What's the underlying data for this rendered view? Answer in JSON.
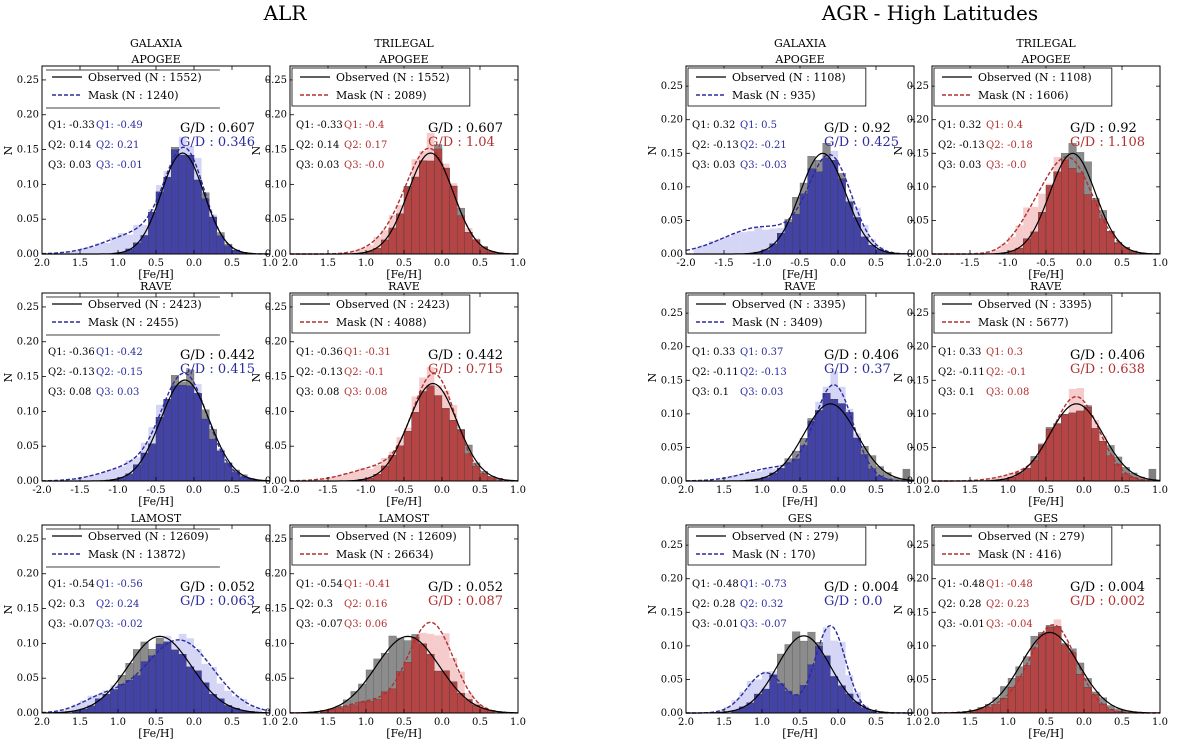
{
  "figure": {
    "section_titles": [
      "ALR",
      "AGR - High Latitudes"
    ],
    "colors": {
      "observed_hist": "#808080",
      "observed_line": "#000000",
      "galaxia": "#2b2b9e",
      "galaxia_light": "#b9b9ee",
      "trilegal": "#b03030",
      "trilegal_light": "#f0a8a8"
    }
  },
  "chart_data": [
    {
      "type": "bar",
      "section": "ALR",
      "title": "GALAXIA",
      "survey": "APOGEE",
      "model": "galaxia",
      "xlabel": "[Fe/H]",
      "ylabel": "N",
      "xlim": [
        2.0,
        1.0
      ],
      "xticks": [
        "2.0",
        "1.5",
        "1.0",
        "0.5",
        "0.0",
        "0.5",
        "1.0"
      ],
      "ylim": [
        0,
        0.27
      ],
      "yticks": [
        "0.00",
        "0.05",
        "0.10",
        "0.15",
        "0.20",
        "0.25"
      ],
      "legend": [
        "Observed (N : 1552)",
        "Mask (N : 1240)"
      ],
      "legend_box": false,
      "q_obs": [
        "Q1: -0.33",
        "Q2: 0.14",
        "Q3: 0.03"
      ],
      "q_mask": [
        "Q1: -0.49",
        "Q2: 0.21",
        "Q3: -0.01"
      ],
      "gd": [
        "G/D : 0.607",
        "G/D : 0.346"
      ],
      "obs": {
        "mu": -0.15,
        "sigma": 0.28,
        "peak": 0.145
      },
      "mask": {
        "mu": -0.12,
        "sigma": 0.26,
        "peak": 0.14
      },
      "tail": {
        "mu": -0.7,
        "sigma": 0.45,
        "peak": 0.03
      },
      "outlier": null
    },
    {
      "type": "bar",
      "section": "ALR",
      "title": "TRILEGAL",
      "survey": "APOGEE",
      "model": "trilegal",
      "xlabel": "[Fe/H]",
      "ylabel": "N",
      "xlim": [
        2.0,
        1.0
      ],
      "xticks": [
        "2.0",
        "1.5",
        "1.0",
        "0.5",
        "0.0",
        "0.5",
        "1.0"
      ],
      "ylim": [
        0,
        0.27
      ],
      "yticks": [
        "0.00",
        "0.05",
        "0.10",
        "0.15",
        "0.20",
        "0.25"
      ],
      "legend": [
        "Observed (N : 1552)",
        "Mask (N : 2089)"
      ],
      "legend_box": true,
      "q_obs": [
        "Q1: -0.33",
        "Q2: 0.14",
        "Q3: 0.03"
      ],
      "q_mask": [
        "Q1: -0.4",
        "Q2: 0.17",
        "Q3: -0.0"
      ],
      "gd": [
        "G/D : 0.607",
        "G/D : 1.04"
      ],
      "obs": {
        "mu": -0.15,
        "sigma": 0.3,
        "peak": 0.145
      },
      "mask": {
        "mu": -0.15,
        "sigma": 0.3,
        "peak": 0.145
      },
      "tail": {
        "mu": -0.6,
        "sigma": 0.3,
        "peak": 0.02
      },
      "outlier": null
    },
    {
      "type": "bar",
      "section": "ALR",
      "title": "",
      "survey": "RAVE",
      "model": "galaxia",
      "xlabel": "[Fe/H]",
      "ylabel": "N",
      "xlim": [
        -2.0,
        1.0
      ],
      "xticks": [
        "-2.0",
        "-1.5",
        "-1.0",
        "-0.5",
        "0.0",
        "0.5",
        "1.0"
      ],
      "ylim": [
        0,
        0.27
      ],
      "yticks": [
        "0.00",
        "0.05",
        "0.10",
        "0.15",
        "0.20",
        "0.25"
      ],
      "legend": [
        "Observed (N : 2423)",
        "Mask (N : 2455)"
      ],
      "legend_box": false,
      "q_obs": [
        "Q1: -0.36",
        "Q2: -0.13",
        "Q3: 0.08"
      ],
      "q_mask": [
        "Q1: -0.42",
        "Q2: -0.15",
        "Q3: 0.03"
      ],
      "gd": [
        "G/D : 0.442",
        "G/D : 0.415"
      ],
      "obs": {
        "mu": -0.12,
        "sigma": 0.32,
        "peak": 0.145
      },
      "mask": {
        "mu": -0.12,
        "sigma": 0.3,
        "peak": 0.15
      },
      "tail": {
        "mu": -0.8,
        "sigma": 0.4,
        "peak": 0.02
      },
      "outlier": null
    },
    {
      "type": "bar",
      "section": "ALR",
      "title": "",
      "survey": "RAVE",
      "model": "trilegal",
      "xlabel": "[Fe/H]",
      "ylabel": "N",
      "xlim": [
        -2.0,
        1.0
      ],
      "xticks": [
        "-2.0",
        "-1.5",
        "-1.0",
        "-0.5",
        "0.0",
        "0.5",
        "1.0"
      ],
      "ylim": [
        0,
        0.27
      ],
      "yticks": [
        "0.00",
        "0.05",
        "0.10",
        "0.15",
        "0.20",
        "0.25"
      ],
      "legend": [
        "Observed (N : 2423)",
        "Mask (N : 4088)"
      ],
      "legend_box": true,
      "q_obs": [
        "Q1: -0.36",
        "Q2: -0.13",
        "Q3: 0.08"
      ],
      "q_mask": [
        "Q1: -0.31",
        "Q2: -0.1",
        "Q3: 0.08"
      ],
      "gd": [
        "G/D : 0.442",
        "G/D : 0.715"
      ],
      "obs": {
        "mu": -0.12,
        "sigma": 0.32,
        "peak": 0.14
      },
      "mask": {
        "mu": -0.1,
        "sigma": 0.28,
        "peak": 0.15
      },
      "tail": {
        "mu": -0.8,
        "sigma": 0.4,
        "peak": 0.02
      },
      "outlier": null
    },
    {
      "type": "bar",
      "section": "ALR",
      "title": "",
      "survey": "LAMOST",
      "model": "galaxia",
      "xlabel": "[Fe/H]",
      "ylabel": "N",
      "xlim": [
        2.0,
        1.0
      ],
      "xticks": [
        "2.0",
        "1.5",
        "1.0",
        "0.5",
        "0.0",
        "0.5",
        "1.0"
      ],
      "ylim": [
        0,
        0.27
      ],
      "yticks": [
        "0.00",
        "0.05",
        "0.10",
        "0.15",
        "0.20",
        "0.25"
      ],
      "legend": [
        "Observed (N : 12609)",
        "Mask (N : 13872)"
      ],
      "legend_box": false,
      "q_obs": [
        "Q1: -0.54",
        "Q2: 0.3",
        "Q3: -0.07"
      ],
      "q_mask": [
        "Q1: -0.56",
        "Q2: 0.24",
        "Q3: -0.02"
      ],
      "gd": [
        "G/D : 0.052",
        "G/D : 0.063"
      ],
      "obs": {
        "mu": -0.45,
        "sigma": 0.42,
        "peak": 0.11
      },
      "mask": {
        "mu": -0.2,
        "sigma": 0.45,
        "peak": 0.105
      },
      "tail": {
        "mu": -1.2,
        "sigma": 0.3,
        "peak": 0.02
      },
      "outlier": null
    },
    {
      "type": "bar",
      "section": "ALR",
      "title": "",
      "survey": "LAMOST",
      "model": "trilegal",
      "xlabel": "[Fe/H]",
      "ylabel": "N",
      "xlim": [
        2.0,
        1.0
      ],
      "xticks": [
        "2.0",
        "1.5",
        "1.0",
        "0.5",
        "0.0",
        "0.5",
        "1.0"
      ],
      "ylim": [
        0,
        0.27
      ],
      "yticks": [
        "0.00",
        "0.05",
        "0.10",
        "0.15",
        "0.20",
        "0.25"
      ],
      "legend": [
        "Observed (N : 12609)",
        "Mask (N : 26634)"
      ],
      "legend_box": true,
      "q_obs": [
        "Q1: -0.54",
        "Q2: 0.3",
        "Q3: -0.07"
      ],
      "q_mask": [
        "Q1: -0.41",
        "Q2: 0.16",
        "Q3: 0.06"
      ],
      "gd": [
        "G/D : 0.052",
        "G/D : 0.087"
      ],
      "obs": {
        "mu": -0.45,
        "sigma": 0.42,
        "peak": 0.11
      },
      "mask": {
        "mu": -0.15,
        "sigma": 0.3,
        "peak": 0.13
      },
      "tail": {
        "mu": -1.0,
        "sigma": 0.3,
        "peak": 0.015
      },
      "outlier": null
    },
    {
      "type": "bar",
      "section": "AGR - High Latitudes",
      "title": "GALAXIA",
      "survey": "APOGEE",
      "model": "galaxia",
      "xlabel": "[Fe/H]",
      "ylabel": "N",
      "xlim": [
        -2.0,
        1.0
      ],
      "xticks": [
        "-2.0",
        "-1.5",
        "-1.0",
        "-0.5",
        "0.0",
        "0.5",
        "1.0"
      ],
      "ylim": [
        0,
        0.28
      ],
      "yticks": [
        "0.00",
        "0.05",
        "0.10",
        "0.15",
        "0.20",
        "0.25"
      ],
      "legend": [
        "Observed (N : 1108)",
        "Mask (N : 935)"
      ],
      "legend_box": true,
      "q_obs": [
        "Q1: 0.32",
        "Q2: -0.13",
        "Q3: 0.03"
      ],
      "q_mask": [
        "Q1: 0.5",
        "Q2: -0.21",
        "Q3: -0.03"
      ],
      "gd": [
        "G/D : 0.92",
        "G/D : 0.425"
      ],
      "obs": {
        "mu": -0.2,
        "sigma": 0.3,
        "peak": 0.15
      },
      "mask": {
        "mu": -0.1,
        "sigma": 0.28,
        "peak": 0.14
      },
      "tail": {
        "mu": -1.0,
        "sigma": 0.5,
        "peak": 0.04
      },
      "outlier": null
    },
    {
      "type": "bar",
      "section": "AGR - High Latitudes",
      "title": "TRILEGAL",
      "survey": "APOGEE",
      "model": "trilegal",
      "xlabel": "[Fe/H]",
      "ylabel": "N",
      "xlim": [
        -2.0,
        1.0
      ],
      "xticks": [
        "-2.0",
        "-1.5",
        "-1.0",
        "-0.5",
        "0.0",
        "0.5",
        "1.0"
      ],
      "ylim": [
        0,
        0.28
      ],
      "yticks": [
        "0.00",
        "0.05",
        "0.10",
        "0.15",
        "0.20",
        "0.25"
      ],
      "legend": [
        "Observed (N : 1108)",
        "Mask (N : 1606)"
      ],
      "legend_box": true,
      "q_obs": [
        "Q1: 0.32",
        "Q2: -0.13",
        "Q3: 0.03"
      ],
      "q_mask": [
        "Q1: 0.4",
        "Q2: -0.18",
        "Q3: -0.0"
      ],
      "gd": [
        "G/D : 0.92",
        "G/D : 1.108"
      ],
      "obs": {
        "mu": -0.15,
        "sigma": 0.3,
        "peak": 0.15
      },
      "mask": {
        "mu": -0.2,
        "sigma": 0.32,
        "peak": 0.14
      },
      "tail": {
        "mu": -0.7,
        "sigma": 0.25,
        "peak": 0.03
      },
      "outlier": null
    },
    {
      "type": "bar",
      "section": "AGR - High Latitudes",
      "title": "",
      "survey": "RAVE",
      "model": "galaxia",
      "xlabel": "[Fe/H]",
      "ylabel": "N",
      "xlim": [
        2.0,
        1.0
      ],
      "xticks": [
        "2.0",
        "1.5",
        "1.0",
        "0.5",
        "0.0",
        "0.5",
        "1.0"
      ],
      "ylim": [
        0,
        0.28
      ],
      "yticks": [
        "0.00",
        "0.05",
        "0.10",
        "0.15",
        "0.20",
        "0.25"
      ],
      "legend": [
        "Observed (N : 3395)",
        "Mask (N : 3409)"
      ],
      "legend_box": true,
      "q_obs": [
        "Q1: 0.33",
        "Q2: -0.11",
        "Q3: 0.1"
      ],
      "q_mask": [
        "Q1: 0.37",
        "Q2: -0.13",
        "Q3: 0.03"
      ],
      "gd": [
        "G/D : 0.406",
        "G/D : 0.37"
      ],
      "obs": {
        "mu": -0.1,
        "sigma": 0.35,
        "peak": 0.115
      },
      "mask": {
        "mu": -0.05,
        "sigma": 0.25,
        "peak": 0.14
      },
      "tail": {
        "mu": -0.8,
        "sigma": 0.4,
        "peak": 0.02
      },
      "outlier": 0.85
    },
    {
      "type": "bar",
      "section": "AGR - High Latitudes",
      "title": "",
      "survey": "RAVE",
      "model": "trilegal",
      "xlabel": "[Fe/H]",
      "ylabel": "N",
      "xlim": [
        2.0,
        1.0
      ],
      "xticks": [
        "2.0",
        "1.5",
        "1.0",
        "0.5",
        "0.0",
        "0.5",
        "1.0"
      ],
      "ylim": [
        0,
        0.28
      ],
      "yticks": [
        "0.00",
        "0.05",
        "0.10",
        "0.15",
        "0.20",
        "0.25"
      ],
      "legend": [
        "Observed (N : 3395)",
        "Mask (N : 5677)"
      ],
      "legend_box": true,
      "q_obs": [
        "Q1: 0.33",
        "Q2: -0.11",
        "Q3: 0.1"
      ],
      "q_mask": [
        "Q1: 0.3",
        "Q2: -0.1",
        "Q3: 0.08"
      ],
      "gd": [
        "G/D : 0.406",
        "G/D : 0.638"
      ],
      "obs": {
        "mu": -0.1,
        "sigma": 0.35,
        "peak": 0.115
      },
      "mask": {
        "mu": -0.1,
        "sigma": 0.3,
        "peak": 0.125
      },
      "tail": {
        "mu": -0.8,
        "sigma": 0.3,
        "peak": 0.01
      },
      "outlier": 0.85
    },
    {
      "type": "bar",
      "section": "AGR - High Latitudes",
      "title": "",
      "survey": "GES",
      "model": "galaxia",
      "xlabel": "[Fe/H]",
      "ylabel": "N",
      "xlim": [
        2.0,
        1.0
      ],
      "xticks": [
        "2.0",
        "1.5",
        "1.0",
        "0.5",
        "0.0",
        "0.5",
        "1.0"
      ],
      "ylim": [
        0,
        0.28
      ],
      "yticks": [
        "0.00",
        "0.05",
        "0.10",
        "0.15",
        "0.20",
        "0.25"
      ],
      "legend": [
        "Observed (N : 279)",
        "Mask (N : 170)"
      ],
      "legend_box": true,
      "q_obs": [
        "Q1: -0.48",
        "Q2: 0.28",
        "Q3: -0.01"
      ],
      "q_mask": [
        "Q1: -0.73",
        "Q2: 0.32",
        "Q3: -0.07"
      ],
      "gd": [
        "G/D : 0.004",
        "G/D : 0.0"
      ],
      "obs": {
        "mu": -0.45,
        "sigma": 0.35,
        "peak": 0.115
      },
      "mask": {
        "mu": -0.1,
        "sigma": 0.2,
        "peak": 0.13
      },
      "tail": {
        "mu": -0.95,
        "sigma": 0.25,
        "peak": 0.06
      },
      "outlier": null
    },
    {
      "type": "bar",
      "section": "AGR - High Latitudes",
      "title": "",
      "survey": "GES",
      "model": "trilegal",
      "xlabel": "[Fe/H]",
      "ylabel": "N",
      "xlim": [
        2.0,
        1.0
      ],
      "xticks": [
        "2.0",
        "1.5",
        "1.0",
        "0.5",
        "0.0",
        "0.5",
        "1.0"
      ],
      "ylim": [
        0,
        0.28
      ],
      "yticks": [
        "0.00",
        "0.05",
        "0.10",
        "0.15",
        "0.20",
        "0.25"
      ],
      "legend": [
        "Observed (N : 279)",
        "Mask (N : 416)"
      ],
      "legend_box": true,
      "q_obs": [
        "Q1: -0.48",
        "Q2: 0.28",
        "Q3: -0.01"
      ],
      "q_mask": [
        "Q1: -0.48",
        "Q2: 0.23",
        "Q3: -0.04"
      ],
      "gd": [
        "G/D : 0.004",
        "G/D : 0.002"
      ],
      "obs": {
        "mu": -0.45,
        "sigma": 0.38,
        "peak": 0.12
      },
      "mask": {
        "mu": -0.4,
        "sigma": 0.3,
        "peak": 0.13
      },
      "tail": {
        "mu": -1.0,
        "sigma": 0.3,
        "peak": 0.01
      },
      "outlier": null
    }
  ]
}
